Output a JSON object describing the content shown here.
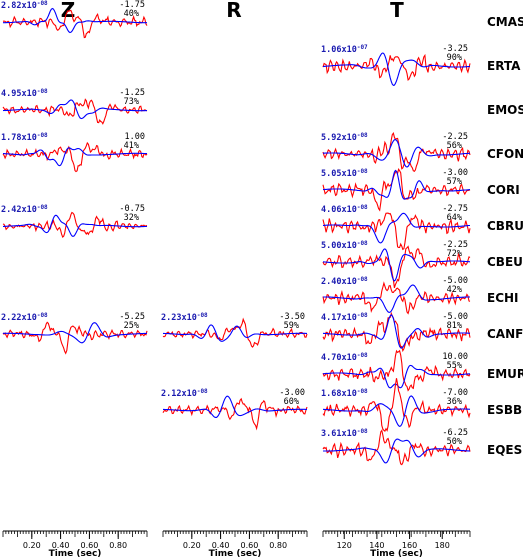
{
  "chart_data": {
    "type": "line",
    "columns": [
      {
        "id": "Z",
        "title": "Z",
        "xlabel": "Time (sec)",
        "ticks": [
          "0.20",
          "0.40",
          "0.60",
          "0.80"
        ],
        "tick_values": [
          0.2,
          0.4,
          0.6,
          0.8
        ],
        "xlim": [
          0.0,
          1.0
        ]
      },
      {
        "id": "R",
        "title": "R",
        "xlabel": "Time (sec)",
        "ticks": [
          "0.20",
          "0.40",
          "0.60",
          "0.80"
        ],
        "tick_values": [
          0.2,
          0.4,
          0.6,
          0.8
        ],
        "xlim": [
          0.0,
          1.0
        ]
      },
      {
        "id": "T",
        "title": "T",
        "xlabel": "Time (sec)",
        "ticks": [
          "120",
          "140",
          "160",
          "180"
        ],
        "tick_values": [
          120,
          140,
          160,
          180
        ],
        "xlim": [
          107,
          197
        ]
      }
    ],
    "stations": [
      "CMAS",
      "ERTA",
      "EMOS",
      "CFON",
      "CORI",
      "CBRU",
      "CBEU",
      "ECHI",
      "CANF",
      "EMUR",
      "ESBB",
      "EQES"
    ],
    "traces": [
      {
        "station": "CMAS",
        "component": "Z",
        "amp_mant": "2.82x10",
        "amp_exp": "-08",
        "shift": "-1.75",
        "fit": "40%"
      },
      {
        "station": "ERTA",
        "component": "T",
        "amp_mant": "1.06x10",
        "amp_exp": "-07",
        "shift": "-3.25",
        "fit": "90%"
      },
      {
        "station": "EMOS",
        "component": "Z",
        "amp_mant": "4.95x10",
        "amp_exp": "-08",
        "shift": "-1.25",
        "fit": "73%"
      },
      {
        "station": "CFON",
        "component": "Z",
        "amp_mant": "1.78x10",
        "amp_exp": "-08",
        "shift": "1.00",
        "fit": "41%"
      },
      {
        "station": "CFON",
        "component": "T",
        "amp_mant": "5.92x10",
        "amp_exp": "-08",
        "shift": "-2.25",
        "fit": "56%"
      },
      {
        "station": "CORI",
        "component": "T",
        "amp_mant": "5.05x10",
        "amp_exp": "-08",
        "shift": "-3.00",
        "fit": "57%"
      },
      {
        "station": "CBRU",
        "component": "Z",
        "amp_mant": "2.42x10",
        "amp_exp": "-08",
        "shift": "-0.75",
        "fit": "32%"
      },
      {
        "station": "CBRU",
        "component": "T",
        "amp_mant": "4.06x10",
        "amp_exp": "-08",
        "shift": "-2.75",
        "fit": "64%"
      },
      {
        "station": "CBEU",
        "component": "T",
        "amp_mant": "5.00x10",
        "amp_exp": "-08",
        "shift": "-2.25",
        "fit": "72%"
      },
      {
        "station": "ECHI",
        "component": "T",
        "amp_mant": "2.40x10",
        "amp_exp": "-08",
        "shift": "-5.00",
        "fit": "42%"
      },
      {
        "station": "CANF",
        "component": "Z",
        "amp_mant": "2.22x10",
        "amp_exp": "-08",
        "shift": "-5.25",
        "fit": "25%"
      },
      {
        "station": "CANF",
        "component": "R",
        "amp_mant": "2.23x10",
        "amp_exp": "-08",
        "shift": "-3.50",
        "fit": "59%"
      },
      {
        "station": "CANF",
        "component": "T",
        "amp_mant": "4.17x10",
        "amp_exp": "-08",
        "shift": "-5.00",
        "fit": "81%"
      },
      {
        "station": "EMUR",
        "component": "T",
        "amp_mant": "4.70x10",
        "amp_exp": "-08",
        "shift": "10.00",
        "fit": "55%"
      },
      {
        "station": "ESBB",
        "component": "R",
        "amp_mant": "2.12x10",
        "amp_exp": "-08",
        "shift": "-3.00",
        "fit": "60%"
      },
      {
        "station": "ESBB",
        "component": "T",
        "amp_mant": "1.68x10",
        "amp_exp": "-08",
        "shift": "-7.00",
        "fit": "36%"
      },
      {
        "station": "EQES",
        "component": "T",
        "amp_mant": "3.61x10",
        "amp_exp": "-08",
        "shift": "-6.25",
        "fit": "50%"
      }
    ],
    "series": [
      {
        "color": "#ff0000"
      },
      {
        "color": "#0000ff"
      }
    ],
    "grid": false,
    "legend": "none"
  }
}
